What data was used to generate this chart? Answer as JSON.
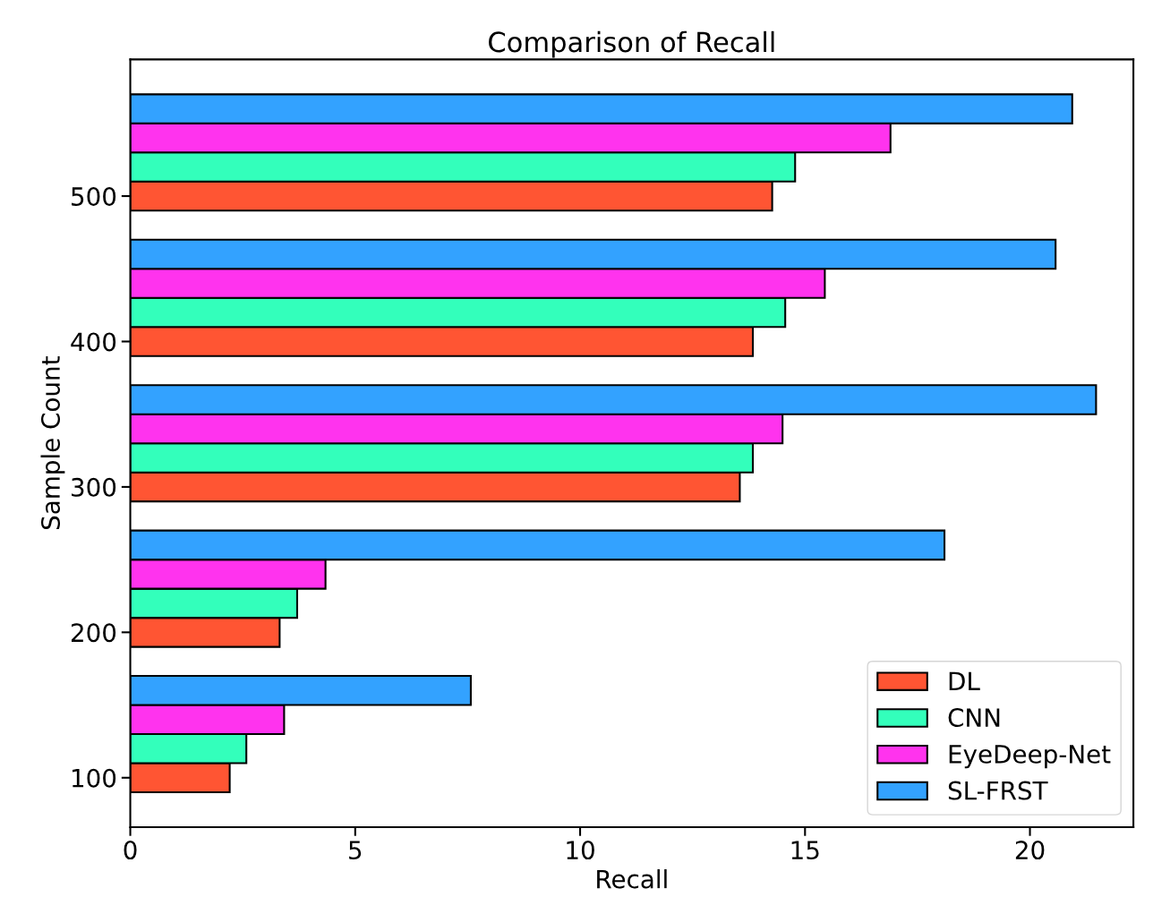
{
  "chart_data": {
    "type": "bar",
    "orientation": "horizontal",
    "title": "Comparison of Recall",
    "xlabel": "Recall",
    "ylabel": "Sample Count",
    "series": [
      {
        "name": "DL",
        "color": "#ff5533",
        "x": [
          500,
          400,
          300,
          200,
          100
        ],
        "values": [
          14.27,
          13.84,
          13.55,
          3.32,
          2.21
        ]
      },
      {
        "name": "CNN",
        "color": "#33ffbb",
        "x": [
          520,
          420,
          320,
          220,
          120
        ],
        "values": [
          14.78,
          14.56,
          13.84,
          3.71,
          2.58
        ]
      },
      {
        "name": "EyeDeep-Net",
        "color": "#ff33ee",
        "x": [
          540,
          440,
          340,
          240,
          140
        ],
        "values": [
          16.9,
          15.44,
          14.5,
          4.34,
          3.42
        ]
      },
      {
        "name": "SL-FRST",
        "color": "#33a2ff",
        "x": [
          560,
          460,
          360,
          260,
          160
        ],
        "values": [
          20.94,
          20.57,
          21.47,
          18.1,
          7.57
        ]
      }
    ],
    "xlim": [
      0,
      22.3
    ],
    "xticks": [
      0,
      5,
      10,
      15,
      20
    ],
    "ylim": [
      66,
      594
    ],
    "yticks": [
      100,
      200,
      300,
      400,
      500
    ],
    "grid": false,
    "legend": "bottom right"
  }
}
